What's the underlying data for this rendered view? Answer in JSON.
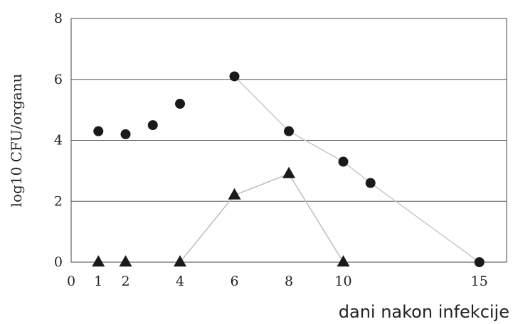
{
  "chart_data": {
    "type": "line",
    "xlabel": "dani nakon infekcije",
    "ylabel": "log10 CFU/organu",
    "xlim": [
      0,
      16
    ],
    "ylim": [
      0,
      8
    ],
    "x_ticks": [
      0,
      1,
      2,
      4,
      6,
      8,
      10,
      15
    ],
    "y_ticks": [
      0,
      2,
      4,
      6,
      8
    ],
    "grid": "horizontal",
    "series": [
      {
        "marker": "circle",
        "color": "#1a1a1a",
        "line_color": "#c8c8c8",
        "connected_from_index": 4,
        "points": [
          {
            "x": 1,
            "y": 4.3
          },
          {
            "x": 2,
            "y": 4.2
          },
          {
            "x": 3,
            "y": 4.5
          },
          {
            "x": 4,
            "y": 5.2
          },
          {
            "x": 6,
            "y": 6.1
          },
          {
            "x": 8,
            "y": 4.3
          },
          {
            "x": 10,
            "y": 3.3
          },
          {
            "x": 11,
            "y": 2.6
          },
          {
            "x": 15,
            "y": 0
          }
        ]
      },
      {
        "marker": "triangle",
        "color": "#1a1a1a",
        "line_color": "#bdbdbd",
        "connected_from_index": 2,
        "points": [
          {
            "x": 1,
            "y": 0
          },
          {
            "x": 2,
            "y": 0
          },
          {
            "x": 4,
            "y": 0
          },
          {
            "x": 6,
            "y": 2.2
          },
          {
            "x": 8,
            "y": 2.9
          },
          {
            "x": 10,
            "y": 0
          }
        ]
      }
    ]
  }
}
